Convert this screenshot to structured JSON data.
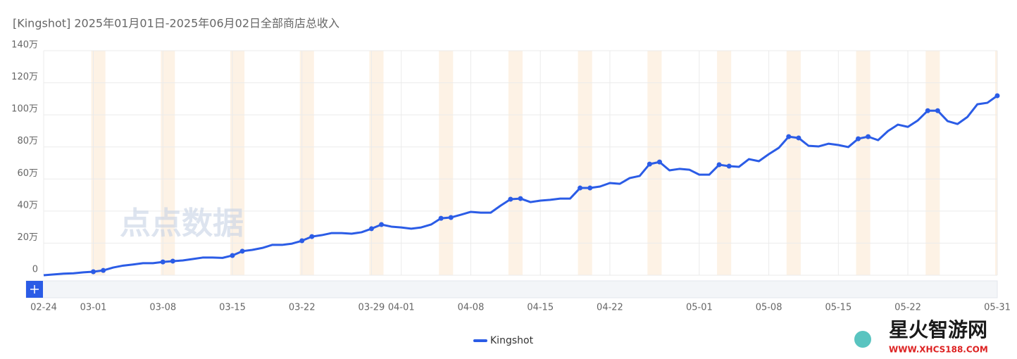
{
  "chart_data": {
    "type": "line",
    "title": "[Kingshot] 2025年01月01日-2025年06月02日全部商店总收入",
    "categories": [
      "02-24",
      null,
      null,
      null,
      null,
      "03-01",
      null,
      null,
      null,
      null,
      null,
      null,
      "03-08",
      null,
      null,
      null,
      null,
      null,
      null,
      "03-15",
      null,
      null,
      null,
      null,
      null,
      null,
      "03-22",
      null,
      null,
      null,
      null,
      null,
      null,
      "03-29",
      null,
      null,
      "04-01",
      null,
      null,
      null,
      null,
      null,
      null,
      "04-08",
      null,
      null,
      null,
      null,
      null,
      null,
      "04-15",
      null,
      null,
      null,
      null,
      null,
      null,
      "04-22",
      null,
      null,
      null,
      null,
      null,
      null,
      null,
      null,
      "05-01",
      null,
      null,
      null,
      null,
      null,
      null,
      "05-08",
      null,
      null,
      null,
      null,
      null,
      null,
      "05-15",
      null,
      null,
      null,
      null,
      null,
      null,
      "05-22",
      null,
      null,
      null,
      null,
      null,
      null,
      null,
      null,
      "05-31"
    ],
    "series": [
      {
        "name": "Kingshot",
        "color": "#2b5ce6",
        "values": [
          0,
          0.5,
          1,
          1.2,
          1.8,
          2.2,
          3,
          4.8,
          6,
          6.7,
          7.5,
          7.5,
          8.3,
          8.8,
          9.2,
          10.1,
          11,
          11,
          10.8,
          12.3,
          15,
          15.8,
          17,
          18.9,
          18.9,
          19.7,
          21.5,
          24.1,
          25,
          26.3,
          26.3,
          25.9,
          26.8,
          29,
          31.6,
          30.3,
          29.8,
          29,
          29.8,
          31.6,
          35.5,
          36,
          37.7,
          39.5,
          39,
          39,
          43.4,
          47.4,
          47.8,
          45.6,
          46.5,
          47,
          47.8,
          47.8,
          54.4,
          54.4,
          55.3,
          57.5,
          57,
          60.6,
          61.9,
          69.3,
          70.6,
          65.4,
          66.3,
          65.8,
          62.7,
          62.7,
          68.9,
          68,
          67.6,
          72.4,
          71.1,
          75.5,
          79.4,
          86.4,
          85.6,
          80.7,
          80.3,
          82,
          81.2,
          79.9,
          85.1,
          86.4,
          84.2,
          89.9,
          93.9,
          92.5,
          96.5,
          102.6,
          102.6,
          96.1,
          94.3,
          98.7,
          106.6,
          107.5,
          111.9
        ]
      }
    ],
    "ylim": [
      0,
      140
    ],
    "yticks": [
      0,
      {
        "value": 20,
        "label": "20万"
      },
      {
        "value": 40,
        "label": "40万"
      },
      {
        "value": 60,
        "label": "60万"
      },
      {
        "value": 80,
        "label": "80万"
      },
      {
        "value": 100,
        "label": "100万"
      },
      {
        "value": 120,
        "label": "120万"
      },
      {
        "value": 140,
        "label": "140万"
      }
    ],
    "grid": true,
    "legend": "bottom"
  },
  "watermarks": [
    "点点数据",
    "星火智游网",
    "WWW.XHCS188.COM"
  ]
}
